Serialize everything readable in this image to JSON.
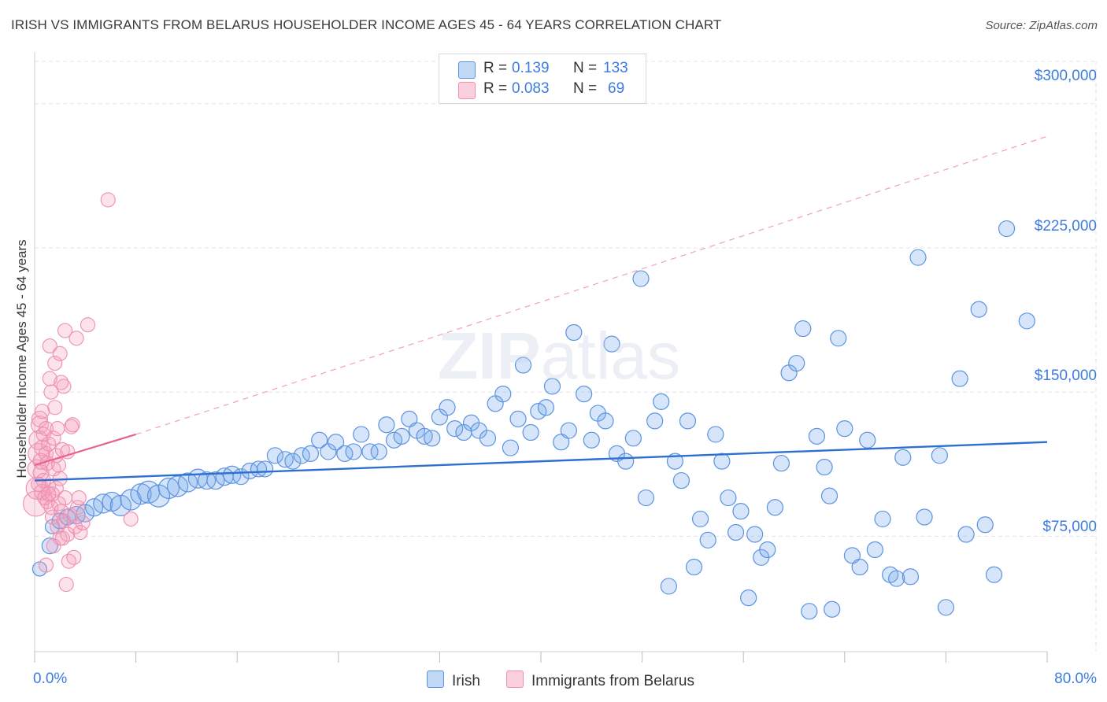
{
  "title": "IRISH VS IMMIGRANTS FROM BELARUS HOUSEHOLDER INCOME AGES 45 - 64 YEARS CORRELATION CHART",
  "source": "Source: ZipAtlas.com",
  "watermark": {
    "bold": "ZIP",
    "light": "atlas"
  },
  "legend": {
    "r_label": "R =",
    "n_label": "N =",
    "rows": [
      {
        "r": "0.139",
        "n": "133"
      },
      {
        "r": "0.083",
        "n": "69"
      }
    ]
  },
  "bottom_legend": [
    "Irish",
    "Immigrants from Belarus"
  ],
  "colors": {
    "irish_fill": "rgba(120,170,235,0.30)",
    "irish_stroke": "#5b93e0",
    "irish_line": "#2f6fd1",
    "belarus_fill": "rgba(245,160,190,0.30)",
    "belarus_stroke": "#ee8fb0",
    "belarus_line": "#e8628e",
    "tick_text": "#3d7be0",
    "grid": "#e3e3e3"
  },
  "chart_data": {
    "type": "scatter",
    "title": "IRISH VS IMMIGRANTS FROM BELARUS HOUSEHOLDER INCOME AGES 45 - 64 YEARS CORRELATION CHART",
    "xlabel": "",
    "ylabel": "Householder Income Ages 45 - 64 years",
    "xlim": [
      0,
      80
    ],
    "ylim": [
      15000,
      322000
    ],
    "x_tick_labels": [
      "0.0%",
      "80.0%"
    ],
    "y_ticks": [
      75000,
      150000,
      225000,
      300000
    ],
    "y_tick_labels": [
      "$75,000",
      "$150,000",
      "$225,000",
      "$300,000"
    ],
    "grid": true,
    "series": [
      {
        "name": "Irish",
        "R": 0.139,
        "N": 133,
        "trend": {
          "x": [
            0,
            80
          ],
          "y": [
            104000,
            124000
          ],
          "style": "solid"
        },
        "points": [
          [
            0.4,
            58000,
            9
          ],
          [
            1.2,
            70000,
            10
          ],
          [
            1.4,
            80000,
            9
          ],
          [
            2.0,
            83000,
            10
          ],
          [
            2.6,
            85000,
            10
          ],
          [
            3.3,
            86000,
            11
          ],
          [
            4.0,
            87000,
            11
          ],
          [
            4.7,
            90000,
            11
          ],
          [
            5.4,
            92000,
            12
          ],
          [
            6.1,
            93000,
            12
          ],
          [
            6.8,
            91000,
            13
          ],
          [
            7.6,
            94000,
            13
          ],
          [
            8.4,
            97000,
            13
          ],
          [
            9.0,
            98000,
            14
          ],
          [
            9.8,
            96000,
            14
          ],
          [
            10.6,
            100000,
            13
          ],
          [
            11.3,
            101000,
            13
          ],
          [
            12.1,
            103000,
            12
          ],
          [
            12.9,
            105000,
            12
          ],
          [
            13.6,
            104000,
            11
          ],
          [
            14.3,
            104000,
            11
          ],
          [
            15.0,
            106000,
            11
          ],
          [
            15.6,
            107000,
            11
          ],
          [
            16.3,
            106000,
            10
          ],
          [
            17.0,
            109000,
            10
          ],
          [
            17.7,
            110000,
            10
          ],
          [
            18.2,
            110000,
            10
          ],
          [
            19.0,
            117000,
            10
          ],
          [
            19.8,
            115000,
            10
          ],
          [
            20.4,
            114000,
            10
          ],
          [
            21.1,
            117000,
            10
          ],
          [
            21.8,
            118000,
            10
          ],
          [
            22.5,
            125000,
            10
          ],
          [
            23.2,
            119000,
            10
          ],
          [
            23.8,
            124000,
            10
          ],
          [
            24.5,
            118000,
            10
          ],
          [
            25.2,
            119000,
            10
          ],
          [
            25.8,
            128000,
            10
          ],
          [
            26.5,
            119000,
            10
          ],
          [
            27.2,
            119000,
            10
          ],
          [
            27.8,
            133000,
            10
          ],
          [
            28.4,
            125000,
            10
          ],
          [
            29.0,
            127000,
            10
          ],
          [
            29.6,
            136000,
            10
          ],
          [
            30.2,
            130000,
            10
          ],
          [
            30.8,
            127000,
            10
          ],
          [
            31.4,
            126000,
            10
          ],
          [
            32.0,
            137000,
            10
          ],
          [
            32.6,
            142000,
            10
          ],
          [
            33.2,
            131000,
            10
          ],
          [
            33.9,
            129000,
            10
          ],
          [
            34.5,
            134000,
            10
          ],
          [
            35.1,
            130000,
            10
          ],
          [
            35.8,
            126000,
            10
          ],
          [
            36.4,
            144000,
            10
          ],
          [
            37.0,
            149000,
            10
          ],
          [
            37.6,
            121000,
            10
          ],
          [
            38.2,
            136000,
            10
          ],
          [
            38.6,
            164000,
            10
          ],
          [
            39.2,
            129000,
            10
          ],
          [
            39.8,
            140000,
            10
          ],
          [
            40.4,
            142000,
            10
          ],
          [
            40.9,
            153000,
            10
          ],
          [
            41.6,
            124000,
            10
          ],
          [
            42.2,
            130000,
            10
          ],
          [
            42.6,
            181000,
            10
          ],
          [
            43.4,
            149000,
            10
          ],
          [
            44.0,
            125000,
            10
          ],
          [
            44.5,
            139000,
            10
          ],
          [
            45.1,
            135000,
            10
          ],
          [
            45.6,
            175000,
            10
          ],
          [
            46.0,
            118000,
            10
          ],
          [
            46.7,
            114000,
            10
          ],
          [
            47.3,
            126000,
            10
          ],
          [
            47.9,
            209000,
            10
          ],
          [
            48.3,
            95000,
            10
          ],
          [
            49.0,
            135000,
            10
          ],
          [
            49.5,
            145000,
            10
          ],
          [
            50.1,
            49000,
            10
          ],
          [
            50.6,
            114000,
            10
          ],
          [
            51.1,
            104000,
            10
          ],
          [
            51.6,
            135000,
            10
          ],
          [
            52.1,
            59000,
            10
          ],
          [
            52.6,
            84000,
            10
          ],
          [
            53.2,
            73000,
            10
          ],
          [
            53.8,
            128000,
            10
          ],
          [
            54.3,
            114000,
            10
          ],
          [
            54.8,
            95000,
            10
          ],
          [
            55.4,
            77000,
            10
          ],
          [
            55.8,
            88000,
            10
          ],
          [
            56.4,
            43000,
            10
          ],
          [
            56.9,
            76000,
            10
          ],
          [
            57.4,
            64000,
            10
          ],
          [
            57.9,
            68000,
            10
          ],
          [
            58.5,
            90000,
            10
          ],
          [
            59.0,
            113000,
            10
          ],
          [
            59.6,
            160000,
            10
          ],
          [
            60.2,
            165000,
            10
          ],
          [
            60.7,
            183000,
            10
          ],
          [
            61.2,
            36000,
            10
          ],
          [
            61.8,
            127000,
            10
          ],
          [
            62.4,
            111000,
            10
          ],
          [
            62.8,
            96000,
            10
          ],
          [
            63.0,
            37000,
            10
          ],
          [
            63.5,
            178000,
            10
          ],
          [
            64.0,
            131000,
            10
          ],
          [
            64.6,
            65000,
            10
          ],
          [
            65.2,
            59000,
            10
          ],
          [
            65.8,
            125000,
            10
          ],
          [
            66.4,
            68000,
            10
          ],
          [
            67.0,
            84000,
            10
          ],
          [
            67.6,
            55000,
            10
          ],
          [
            68.1,
            53000,
            10
          ],
          [
            68.6,
            116000,
            10
          ],
          [
            69.2,
            54000,
            10
          ],
          [
            69.8,
            220000,
            10
          ],
          [
            70.3,
            85000,
            10
          ],
          [
            71.5,
            117000,
            10
          ],
          [
            72.0,
            38000,
            10
          ],
          [
            73.1,
            157000,
            10
          ],
          [
            73.6,
            76000,
            10
          ],
          [
            74.6,
            193000,
            10
          ],
          [
            75.1,
            81000,
            10
          ],
          [
            75.8,
            55000,
            10
          ],
          [
            76.8,
            235000,
            10
          ],
          [
            78.4,
            187000,
            10
          ]
        ]
      },
      {
        "name": "Immigrants from Belarus",
        "R": 0.083,
        "N": 69,
        "trend": {
          "x": [
            0,
            8
          ],
          "y": [
            112000,
            128000
          ],
          "style": "solid"
        },
        "trend_extended": {
          "x": [
            8,
            80
          ],
          "y": [
            128000,
            283000
          ],
          "style": "dashed"
        },
        "points": [
          [
            0.1,
            92000,
            16
          ],
          [
            0.2,
            100000,
            14
          ],
          [
            0.2,
            110000,
            12
          ],
          [
            0.3,
            118000,
            13
          ],
          [
            0.3,
            125000,
            12
          ],
          [
            0.4,
            133000,
            11
          ],
          [
            0.4,
            136000,
            10
          ],
          [
            0.5,
            108000,
            10
          ],
          [
            0.5,
            114000,
            10
          ],
          [
            0.6,
            98000,
            10
          ],
          [
            0.6,
            121000,
            10
          ],
          [
            0.7,
            128000,
            9
          ],
          [
            0.7,
            104000,
            9
          ],
          [
            0.8,
            95000,
            9
          ],
          [
            0.9,
            118000,
            9
          ],
          [
            0.9,
            131000,
            9
          ],
          [
            1.0,
            93000,
            9
          ],
          [
            1.0,
            113000,
            9
          ],
          [
            1.1,
            101000,
            9
          ],
          [
            1.1,
            123000,
            9
          ],
          [
            1.2,
            157000,
            9
          ],
          [
            1.2,
            174000,
            9
          ],
          [
            1.3,
            90000,
            9
          ],
          [
            1.3,
            150000,
            9
          ],
          [
            1.4,
            85000,
            9
          ],
          [
            1.4,
            97000,
            9
          ],
          [
            1.5,
            110000,
            9
          ],
          [
            1.5,
            126000,
            9
          ],
          [
            1.6,
            142000,
            9
          ],
          [
            1.6,
            165000,
            9
          ],
          [
            1.7,
            100000,
            9
          ],
          [
            1.7,
            117000,
            9
          ],
          [
            1.8,
            80000,
            9
          ],
          [
            1.8,
            131000,
            9
          ],
          [
            1.9,
            92000,
            9
          ],
          [
            2.0,
            74000,
            9
          ],
          [
            2.0,
            105000,
            9
          ],
          [
            2.0,
            170000,
            9
          ],
          [
            2.1,
            88000,
            9
          ],
          [
            2.1,
            155000,
            9
          ],
          [
            2.2,
            120000,
            9
          ],
          [
            2.3,
            83000,
            9
          ],
          [
            2.3,
            153000,
            9
          ],
          [
            2.4,
            95000,
            9
          ],
          [
            2.4,
            182000,
            9
          ],
          [
            2.5,
            50000,
            9
          ],
          [
            2.6,
            119000,
            9
          ],
          [
            2.6,
            76000,
            9
          ],
          [
            2.7,
            62000,
            9
          ],
          [
            2.8,
            86000,
            9
          ],
          [
            2.9,
            132000,
            9
          ],
          [
            3.0,
            133000,
            9
          ],
          [
            3.1,
            64000,
            9
          ],
          [
            3.2,
            80000,
            9
          ],
          [
            3.3,
            178000,
            9
          ],
          [
            3.4,
            90000,
            9
          ],
          [
            3.6,
            77000,
            9
          ],
          [
            3.8,
            82000,
            9
          ],
          [
            4.2,
            185000,
            9
          ],
          [
            5.8,
            250000,
            9
          ],
          [
            7.6,
            84000,
            9
          ],
          [
            0.9,
            60000,
            9
          ],
          [
            1.5,
            70000,
            9
          ],
          [
            0.6,
            140000,
            9
          ],
          [
            1.1,
            97000,
            9
          ],
          [
            2.2,
            74000,
            9
          ],
          [
            0.3,
            102000,
            9
          ],
          [
            1.9,
            112000,
            9
          ],
          [
            3.5,
            95000,
            9
          ]
        ]
      }
    ]
  }
}
